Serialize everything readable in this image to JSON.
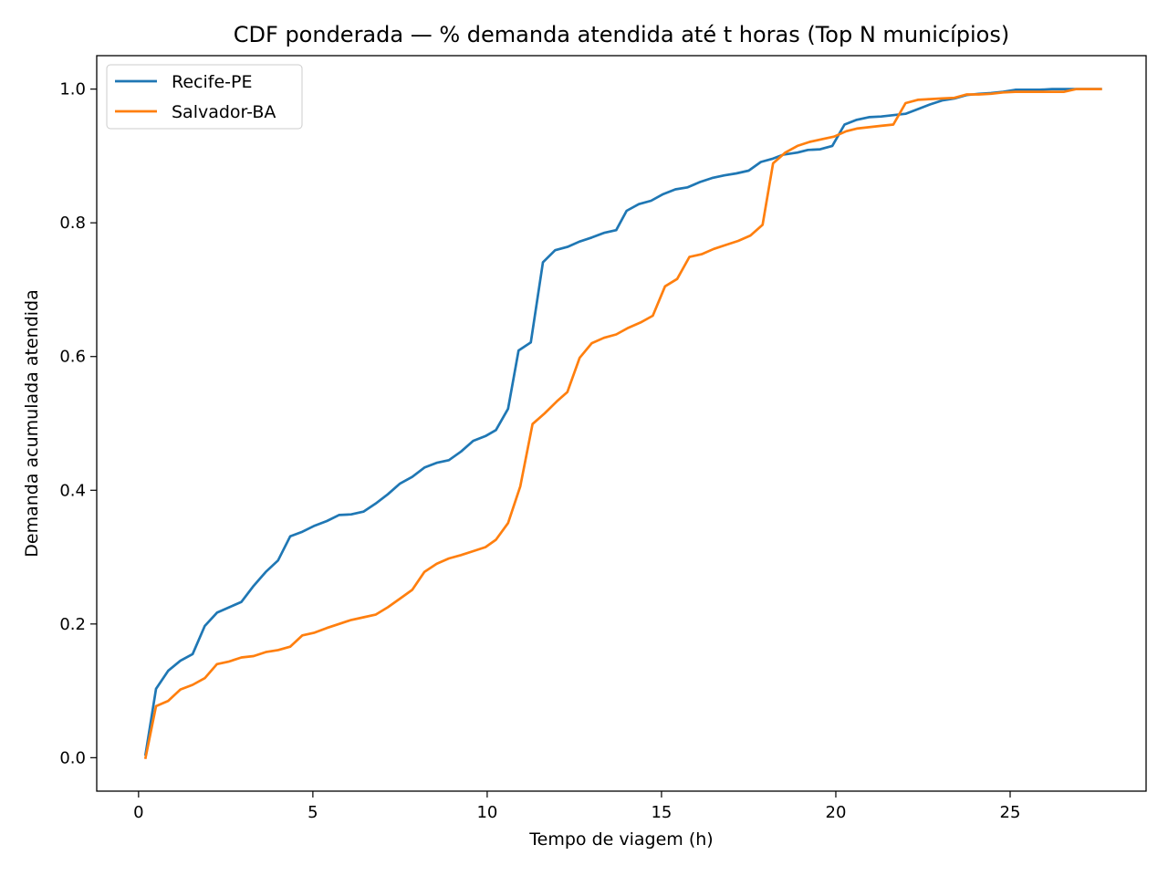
{
  "chart_data": {
    "type": "line",
    "title": "CDF ponderada — % demanda atendida até t horas (Top N municípios)",
    "xlabel": "Tempo de viagem (h)",
    "ylabel": "Demanda acumulada atendida",
    "xlim": [
      -1.2,
      28.9
    ],
    "ylim": [
      -0.05,
      1.05
    ],
    "xticks": [
      0,
      5,
      10,
      15,
      20,
      25
    ],
    "xtick_labels": [
      "0",
      "5",
      "10",
      "15",
      "20",
      "25"
    ],
    "yticks": [
      0.0,
      0.2,
      0.4,
      0.6,
      0.8,
      1.0
    ],
    "ytick_labels": [
      "0.0",
      "0.2",
      "0.4",
      "0.6",
      "0.8",
      "1.0"
    ],
    "grid": false,
    "legend": "top-left",
    "series": [
      {
        "name": "Recife-PE",
        "color": "#1f77b4",
        "x": [
          0.2,
          0.5,
          0.85,
          1.2,
          1.55,
          1.9,
          2.25,
          2.6,
          2.95,
          3.3,
          3.65,
          4.0,
          4.35,
          4.7,
          5.05,
          5.4,
          5.75,
          6.1,
          6.45,
          6.8,
          7.15,
          7.5,
          7.85,
          8.2,
          8.55,
          8.9,
          9.25,
          9.6,
          9.95,
          10.25,
          10.6,
          10.9,
          11.25,
          11.6,
          11.95,
          12.3,
          12.65,
          13.0,
          13.35,
          13.7,
          14.0,
          14.35,
          14.7,
          15.05,
          15.4,
          15.75,
          16.1,
          16.45,
          16.8,
          17.15,
          17.5,
          17.85,
          18.2,
          18.5,
          18.9,
          19.2,
          19.55,
          19.9,
          20.25,
          20.6,
          20.95,
          21.3,
          21.65,
          22.0,
          22.35,
          22.7,
          23.05,
          23.4,
          23.75,
          24.1,
          24.45,
          24.8,
          25.15,
          25.5,
          25.85,
          26.2,
          26.55,
          26.9,
          27.25,
          27.6
        ],
        "y": [
          0.005,
          0.103,
          0.13,
          0.145,
          0.155,
          0.197,
          0.217,
          0.225,
          0.233,
          0.257,
          0.278,
          0.295,
          0.331,
          0.338,
          0.347,
          0.354,
          0.363,
          0.364,
          0.368,
          0.38,
          0.394,
          0.41,
          0.42,
          0.434,
          0.441,
          0.445,
          0.458,
          0.474,
          0.481,
          0.49,
          0.522,
          0.609,
          0.621,
          0.741,
          0.759,
          0.764,
          0.772,
          0.778,
          0.785,
          0.789,
          0.818,
          0.828,
          0.833,
          0.843,
          0.85,
          0.853,
          0.861,
          0.867,
          0.871,
          0.874,
          0.878,
          0.891,
          0.896,
          0.902,
          0.905,
          0.909,
          0.91,
          0.915,
          0.947,
          0.954,
          0.958,
          0.959,
          0.961,
          0.963,
          0.97,
          0.977,
          0.983,
          0.986,
          0.991,
          0.993,
          0.994,
          0.996,
          0.999,
          0.999,
          0.999,
          1.0,
          1.0,
          1.0,
          1.0,
          1.0
        ]
      },
      {
        "name": "Salvador-BA",
        "color": "#ff7f0e",
        "x": [
          0.2,
          0.5,
          0.85,
          1.2,
          1.55,
          1.9,
          2.25,
          2.6,
          2.95,
          3.3,
          3.65,
          4.0,
          4.35,
          4.7,
          5.05,
          5.4,
          5.75,
          6.1,
          6.45,
          6.8,
          7.15,
          7.5,
          7.85,
          8.2,
          8.55,
          8.9,
          9.25,
          9.6,
          9.95,
          10.25,
          10.6,
          10.95,
          11.3,
          11.65,
          12.0,
          12.3,
          12.65,
          13.0,
          13.35,
          13.7,
          14.05,
          14.4,
          14.75,
          15.1,
          15.45,
          15.8,
          16.15,
          16.5,
          16.85,
          17.2,
          17.55,
          17.9,
          18.2,
          18.55,
          18.9,
          19.25,
          19.6,
          19.95,
          20.3,
          20.6,
          20.95,
          21.3,
          21.65,
          22.0,
          22.35,
          22.7,
          23.05,
          23.4,
          23.75,
          24.1,
          24.45,
          24.8,
          25.15,
          25.5,
          25.85,
          26.2,
          26.55,
          26.9,
          27.25,
          27.6
        ],
        "y": [
          0.0,
          0.077,
          0.085,
          0.102,
          0.109,
          0.119,
          0.14,
          0.144,
          0.15,
          0.152,
          0.158,
          0.161,
          0.166,
          0.183,
          0.187,
          0.194,
          0.2,
          0.206,
          0.21,
          0.214,
          0.225,
          0.238,
          0.251,
          0.278,
          0.29,
          0.298,
          0.303,
          0.309,
          0.315,
          0.326,
          0.351,
          0.406,
          0.499,
          0.515,
          0.533,
          0.547,
          0.598,
          0.62,
          0.628,
          0.633,
          0.643,
          0.651,
          0.661,
          0.705,
          0.716,
          0.749,
          0.753,
          0.761,
          0.767,
          0.773,
          0.781,
          0.797,
          0.889,
          0.905,
          0.915,
          0.921,
          0.925,
          0.929,
          0.937,
          0.941,
          0.943,
          0.945,
          0.947,
          0.979,
          0.984,
          0.985,
          0.986,
          0.987,
          0.992,
          0.992,
          0.993,
          0.995,
          0.996,
          0.996,
          0.996,
          0.996,
          0.996,
          1.0,
          1.0,
          1.0
        ]
      }
    ]
  }
}
